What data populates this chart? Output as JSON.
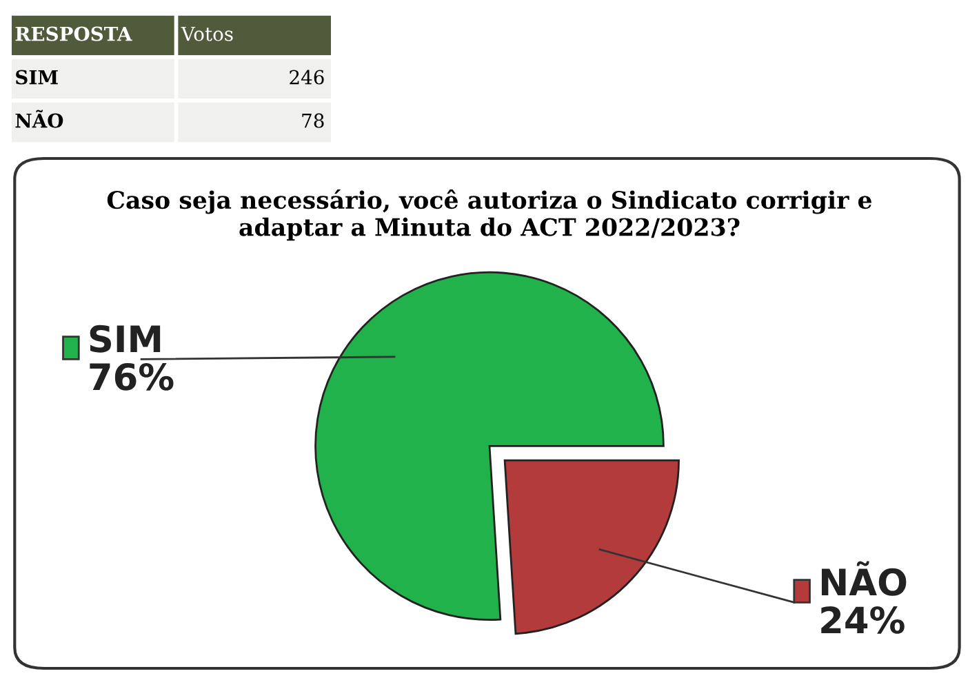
{
  "chart_data": {
    "type": "pie",
    "title": "Caso seja necessário, você autoriza o Sindicato corrigir e\nadaptar a Minuta do ACT 2022/2023?",
    "categories": [
      "SIM",
      "NÃO"
    ],
    "values": [
      76,
      24
    ],
    "value_labels": [
      "76%",
      "24%"
    ],
    "colors": [
      "#22b24c",
      "#b33b3b"
    ],
    "annotations": [
      "RESPOSTA",
      "Votos",
      "SIM",
      "246",
      "NÃO",
      "78"
    ],
    "data_labels": true,
    "legend": "left"
  }
}
